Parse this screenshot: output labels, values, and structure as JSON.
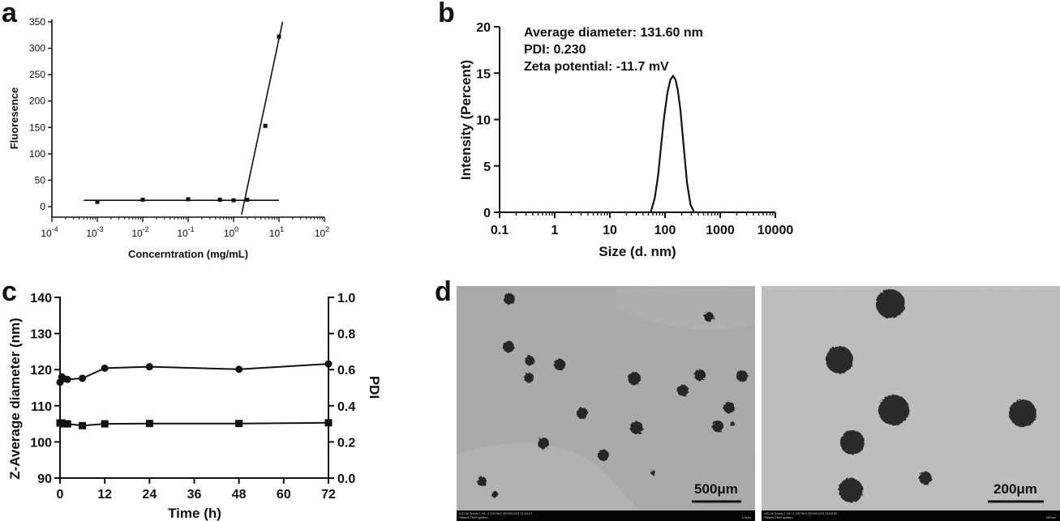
{
  "panel_labels": {
    "a": "a",
    "b": "b",
    "c": "c",
    "d": "d"
  },
  "chart_data": [
    {
      "panel": "a",
      "type": "scatter",
      "xscale": "log",
      "xlabel": "Concerntration (mg/mL)",
      "ylabel": "Fluoresence",
      "xlim": [
        0.0001,
        100
      ],
      "ylim": [
        -15,
        350
      ],
      "xticks": [
        {
          "v": 0.0001,
          "base": "10",
          "exp": "-4"
        },
        {
          "v": 0.001,
          "base": "10",
          "exp": "-3"
        },
        {
          "v": 0.01,
          "base": "10",
          "exp": "-2"
        },
        {
          "v": 0.1,
          "base": "10",
          "exp": "-1"
        },
        {
          "v": 1,
          "base": "10",
          "exp": "0"
        },
        {
          "v": 10,
          "base": "10",
          "exp": "1"
        },
        {
          "v": 100,
          "base": "10",
          "exp": "2"
        }
      ],
      "yticks": [
        "0",
        "50",
        "100",
        "150",
        "200",
        "250",
        "300",
        "350"
      ],
      "points": [
        {
          "x": 0.001,
          "y": 9
        },
        {
          "x": 0.01,
          "y": 13
        },
        {
          "x": 0.1,
          "y": 14
        },
        {
          "x": 0.5,
          "y": 13
        },
        {
          "x": 1,
          "y": 12
        },
        {
          "x": 2,
          "y": 13
        },
        {
          "x": 5,
          "y": 153
        },
        {
          "x": 10,
          "y": 322
        }
      ],
      "fit_lines": [
        {
          "x": [
            0.0005,
            10
          ],
          "y": [
            12,
            12
          ]
        },
        {
          "x": [
            1.5,
            12
          ],
          "y": [
            -15,
            350
          ]
        }
      ]
    },
    {
      "panel": "b",
      "type": "line",
      "xscale": "log",
      "xlabel": "Size (d. nm)",
      "ylabel": "Intensity (Percent)",
      "xlim": [
        0.1,
        10000
      ],
      "ylim": [
        0,
        20
      ],
      "xticks": [
        "0.1",
        "1",
        "10",
        "100",
        "1000",
        "10000"
      ],
      "yticks": [
        "0",
        "5",
        "10",
        "15",
        "20"
      ],
      "annotations": [
        "Average diameter: 131.60 nm",
        "PDI: 0.230",
        "Zeta potential: -11.7 mV"
      ],
      "x": [
        55,
        65,
        75,
        85,
        95,
        110,
        125,
        140,
        155,
        170,
        190,
        215,
        250,
        290,
        340
      ],
      "y": [
        0,
        1.5,
        4,
        7.2,
        10,
        12.8,
        14.3,
        14.7,
        14.3,
        13.2,
        11,
        7.5,
        3.2,
        0.8,
        0
      ]
    },
    {
      "panel": "c",
      "type": "line",
      "xlabel": "Time (h)",
      "ylabel": "Z-Average diameter (nm)",
      "ylabel_right": "PDI",
      "xlim": [
        0,
        72
      ],
      "ylim": [
        90,
        140
      ],
      "ylim_right": [
        0,
        1
      ],
      "xticks": [
        "0",
        "12",
        "24",
        "36",
        "48",
        "60",
        "72"
      ],
      "yticks": [
        "90",
        "100",
        "110",
        "120",
        "130",
        "140"
      ],
      "yticks_right": [
        "0.0",
        "0.2",
        "0.4",
        "0.6",
        "0.8",
        "1.0"
      ],
      "series": [
        {
          "marker": "circle",
          "axis": "left",
          "x": [
            0,
            0.5,
            1,
            2,
            6,
            12,
            24,
            48,
            72
          ],
          "y": [
            116.5,
            118,
            117.5,
            117.3,
            117.6,
            120.4,
            120.8,
            120.1,
            121.6
          ]
        },
        {
          "marker": "square",
          "axis": "right",
          "x": [
            0,
            0.5,
            1,
            2,
            6,
            12,
            24,
            48,
            72
          ],
          "y": [
            0.305,
            0.305,
            0.3,
            0.3,
            0.29,
            0.3,
            0.302,
            0.302,
            0.306
          ]
        }
      ]
    }
  ],
  "tem": {
    "scale_left": "500μm",
    "scale_right": "200μm",
    "footer_left_a": "x10.0k Zoom-1 HC-1 100.0kV 2020/01/03 11:18:17",
    "footer_left_b": "Hitachi TEM system.",
    "footer_left_c": "1.0μm",
    "footer_right_a": "x30.0k Zoom-1 HC-1 100.0kV 2020/01/03 11:15:32",
    "footer_right_b": "Hitachi TEM system.",
    "footer_right_c": "200nm"
  }
}
